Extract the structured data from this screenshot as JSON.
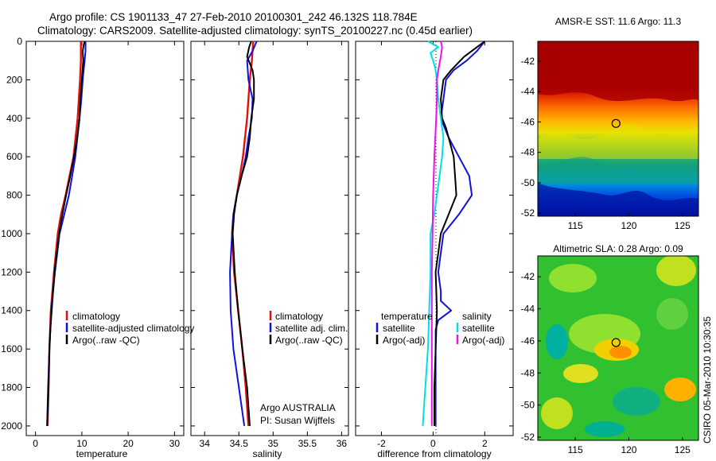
{
  "header": {
    "title_line1": "Argo profile: CS 1901133_47 27-Feb-2010 20100301_242 46.132S 118.784E",
    "title_line2": "Climatology: CARS2009. Satellite-adjusted climatology: synTS_20100227.nc (0.45d earlier)"
  },
  "footer": {
    "stamp": "CSIRO 05-Mar-2010 10:30:35",
    "argo_owner": "Argo AUSTRALIA",
    "pi": "PI: Susan Wijffels"
  },
  "colors": {
    "red": "#e01010",
    "blue": "#1010e0",
    "black": "#000000",
    "cyan": "#00e0e0",
    "magenta": "#ee10ee"
  },
  "chart_data": [
    {
      "type": "line",
      "xlabel": "temperature",
      "ylabel": "",
      "xlim": [
        -2,
        32
      ],
      "ylim": [
        2050,
        0
      ],
      "xticks": [
        0,
        10,
        20,
        30
      ],
      "yticks": [
        0,
        200,
        400,
        600,
        800,
        1000,
        1200,
        1400,
        1600,
        1800,
        2000
      ],
      "legend": [
        {
          "label": "climatology",
          "color": "#e01010"
        },
        {
          "label": "satellite-adjusted climatology",
          "color": "#1010e0"
        },
        {
          "label": "Argo(..raw -QC)",
          "color": "#000000"
        }
      ],
      "series": [
        {
          "name": "climatology",
          "color": "#e01010",
          "width": 2.4,
          "depth": [
            0,
            100,
            200,
            400,
            600,
            800,
            900,
            1000,
            1200,
            1400,
            1600,
            1800,
            2000
          ],
          "values": [
            9.8,
            9.8,
            9.6,
            9.1,
            8.2,
            6.5,
            5.5,
            4.8,
            4.0,
            3.3,
            3.0,
            2.8,
            2.6
          ]
        },
        {
          "name": "satellite-adjusted climatology",
          "color": "#1010e0",
          "width": 2,
          "depth": [
            0,
            50,
            100,
            200,
            300,
            400,
            600,
            700,
            800,
            900,
            1000,
            1200,
            1400,
            1600,
            1800,
            2000
          ],
          "values": [
            10.8,
            10.8,
            10.6,
            10.2,
            9.9,
            9.5,
            8.6,
            7.9,
            7.2,
            6.2,
            5.2,
            4.2,
            3.4,
            3.0,
            2.7,
            2.5
          ]
        },
        {
          "name": "Argo(..raw -QC)",
          "color": "#000000",
          "width": 2,
          "depth": [
            0,
            20,
            50,
            100,
            200,
            300,
            400,
            500,
            600,
            700,
            800,
            900,
            1000,
            1200,
            1400,
            1500,
            1600,
            1800,
            2000
          ],
          "values": [
            10.6,
            10.4,
            10.2,
            10.3,
            10.0,
            9.7,
            9.5,
            9.0,
            8.3,
            7.5,
            6.6,
            5.8,
            5.1,
            4.1,
            3.5,
            3.2,
            3.0,
            2.8,
            2.5
          ]
        }
      ]
    },
    {
      "type": "line",
      "xlabel": "salinity",
      "ylabel": "",
      "xlim": [
        33.8,
        36.1
      ],
      "ylim": [
        2050,
        0
      ],
      "xticks": [
        34,
        34.5,
        35,
        35.5,
        36
      ],
      "yticks": [
        0,
        200,
        400,
        600,
        800,
        1000,
        1200,
        1400,
        1600,
        1800,
        2000
      ],
      "legend": [
        {
          "label": "climatology",
          "color": "#e01010"
        },
        {
          "label": "satellite adj. clim.",
          "color": "#1010e0"
        },
        {
          "label": "Argo(..raw -QC)",
          "color": "#000000"
        }
      ],
      "series": [
        {
          "name": "climatology",
          "color": "#e01010",
          "width": 2.4,
          "depth": [
            0,
            100,
            200,
            300,
            400,
            600,
            800,
            900,
            1000,
            1200,
            1400,
            1600,
            1800,
            2000
          ],
          "values": [
            34.71,
            34.69,
            34.66,
            34.64,
            34.62,
            34.56,
            34.47,
            34.42,
            34.4,
            34.43,
            34.49,
            34.55,
            34.6,
            34.64
          ]
        },
        {
          "name": "satellite adj. clim.",
          "color": "#1010e0",
          "width": 2,
          "depth": [
            0,
            50,
            100,
            200,
            300,
            400,
            500,
            600,
            700,
            800,
            900,
            1000,
            1200,
            1400,
            1600,
            1800,
            2000
          ],
          "values": [
            34.76,
            34.7,
            34.62,
            34.64,
            34.7,
            34.69,
            34.64,
            34.6,
            34.54,
            34.47,
            34.42,
            34.4,
            34.37,
            34.38,
            34.42,
            34.5,
            34.58
          ]
        },
        {
          "name": "Argo(..raw -QC)",
          "color": "#000000",
          "width": 2,
          "depth": [
            0,
            30,
            80,
            150,
            200,
            300,
            400,
            500,
            600,
            700,
            800,
            900,
            1000,
            1200,
            1400,
            1600,
            1800,
            2000
          ],
          "values": [
            34.68,
            34.65,
            34.62,
            34.7,
            34.72,
            34.72,
            34.68,
            34.66,
            34.62,
            34.54,
            34.47,
            34.43,
            34.41,
            34.44,
            34.49,
            34.55,
            34.62,
            34.66
          ]
        }
      ]
    },
    {
      "type": "line",
      "xlabel": "difference from climatology",
      "ylabel": "",
      "xlim": [
        -3,
        3.1
      ],
      "ylim": [
        2050,
        0
      ],
      "xticks": [
        -2,
        0,
        2
      ],
      "yticks": [
        0,
        200,
        400,
        600,
        800,
        1000,
        1200,
        1400,
        1600,
        1800,
        2000
      ],
      "legend_left_title": "temperature",
      "legend_right_title": "salinity",
      "legend_left": [
        {
          "label": "satellite",
          "color": "#1010e0"
        },
        {
          "label": "Argo(-adj)",
          "color": "#000000"
        }
      ],
      "legend_right": [
        {
          "label": "satellite",
          "color": "#00e0e0"
        },
        {
          "label": "Argo(-adj)",
          "color": "#ee10ee"
        }
      ],
      "series": [
        {
          "name": "temperature satellite",
          "color": "#1010e0",
          "width": 2,
          "depth": [
            0,
            50,
            100,
            150,
            200,
            300,
            400,
            500,
            600,
            700,
            800,
            900,
            1000,
            1100,
            1200,
            1300,
            1350,
            1400,
            1450,
            1500,
            1600,
            1800,
            2000
          ],
          "values": [
            2.0,
            1.7,
            1.3,
            0.8,
            0.5,
            0.4,
            0.3,
            0.6,
            1.0,
            1.4,
            1.5,
            1.0,
            0.4,
            0.3,
            0.2,
            0.3,
            0.3,
            0.7,
            0.2,
            0.1,
            0.1,
            0.1,
            0.1
          ]
        },
        {
          "name": "temperature Argo(-adj)",
          "color": "#000000",
          "width": 2,
          "depth": [
            0,
            40,
            80,
            150,
            200,
            300,
            400,
            450,
            500,
            600,
            700,
            800,
            900,
            1000,
            1100,
            1200,
            1400,
            1600,
            1800,
            2000
          ],
          "values": [
            2.0,
            1.6,
            1.2,
            0.7,
            0.4,
            0.3,
            0.35,
            0.5,
            0.6,
            0.8,
            0.85,
            0.9,
            0.6,
            0.3,
            0.2,
            0.1,
            0.15,
            0.1,
            0.05,
            0.05
          ]
        },
        {
          "name": "salinity satellite",
          "color": "#00e0e0",
          "width": 2,
          "depth": [
            0,
            30,
            60,
            100,
            150,
            200,
            300,
            400,
            500,
            600,
            700,
            800,
            900,
            1000,
            1200,
            1400,
            1600,
            1800,
            2000
          ],
          "values": [
            -0.2,
            0.2,
            -0.1,
            0.0,
            0.1,
            0.15,
            0.2,
            0.3,
            0.4,
            0.35,
            0.25,
            0.15,
            0.05,
            -0.1,
            -0.1,
            -0.15,
            -0.2,
            -0.3,
            -0.4
          ]
        },
        {
          "name": "salinity Argo(-adj)",
          "color": "#ee10ee",
          "width": 2,
          "depth": [
            0,
            30,
            80,
            150,
            200,
            300,
            400,
            600,
            800,
            1000,
            1200,
            1400,
            1600,
            1800,
            2000
          ],
          "values": [
            0.3,
            0.35,
            0.3,
            0.2,
            0.15,
            0.15,
            0.12,
            0.05,
            0.0,
            -0.02,
            -0.05,
            -0.05,
            -0.05,
            -0.05,
            -0.05
          ]
        }
      ]
    },
    {
      "type": "heatmap",
      "title": "AMSR-E SST: 11.6 Argo: 11.3",
      "xlim": [
        111.5,
        126.5
      ],
      "ylim": [
        -52.2,
        -40.7
      ],
      "xticks": [
        115,
        120,
        125
      ],
      "yticks": [
        -42,
        -44,
        -46,
        -48,
        -50,
        -52
      ],
      "marker": {
        "lon": 118.8,
        "lat": -46.1
      }
    },
    {
      "type": "heatmap",
      "title": "Altimetric SLA: 0.28 Argo: 0.09",
      "xlim": [
        111.5,
        126.5
      ],
      "ylim": [
        -52.2,
        -40.7
      ],
      "xticks": [
        115,
        120,
        125
      ],
      "yticks": [
        -42,
        -44,
        -46,
        -48,
        -50,
        -52
      ],
      "marker": {
        "lon": 118.8,
        "lat": -46.1
      }
    }
  ]
}
